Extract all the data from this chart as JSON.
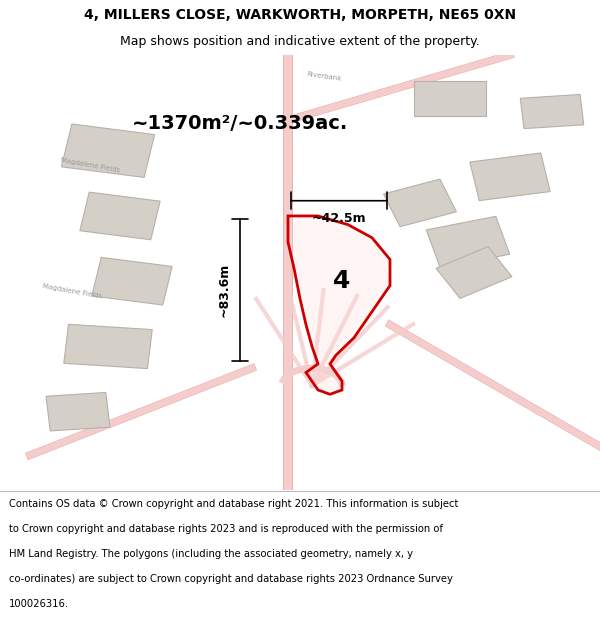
{
  "title_line1": "4, MILLERS CLOSE, WARKWORTH, MORPETH, NE65 0XN",
  "title_line2": "Map shows position and indicative extent of the property.",
  "area_text": "~1370m²/~0.339ac.",
  "dim_height": "~83.6m",
  "dim_width": "~42.5m",
  "plot_number": "4",
  "footer_lines": [
    "Contains OS data © Crown copyright and database right 2021. This information is subject",
    "to Crown copyright and database rights 2023 and is reproduced with the permission of",
    "HM Land Registry. The polygons (including the associated geometry, namely x, y",
    "co-ordinates) are subject to Crown copyright and database rights 2023 Ordnance Survey",
    "100026316."
  ],
  "bg_color": "#f0ece6",
  "road_color": "#f4cccc",
  "road_edge": "#e8a0a0",
  "building_color": "#d4d0c8",
  "building_edge": "#b8b0a8",
  "plot_fill": [
    1,
    0.85,
    0.85,
    0.25
  ],
  "plot_edge_color": "#cc0000",
  "title_color": "#000000",
  "footer_color": "#000000"
}
